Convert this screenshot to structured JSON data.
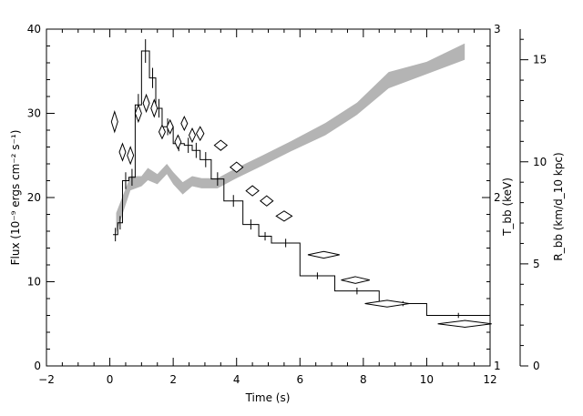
{
  "chart_data": {
    "type": "line",
    "title": "",
    "xlabel": "Time (s)",
    "ylabel": "Flux (10⁻⁹ ergs cm⁻² s⁻¹)",
    "y2label": "T_bb (keV)",
    "y3label": "R_bb (km/d_10 kpc)",
    "xlim": [
      -2,
      12
    ],
    "ylim": [
      0,
      40
    ],
    "y2lim": [
      1,
      3
    ],
    "y3lim": [
      0,
      16.5
    ],
    "x_ticks": [
      -2,
      0,
      2,
      4,
      6,
      8,
      10,
      12
    ],
    "y_ticks": [
      0,
      10,
      20,
      30,
      40
    ],
    "y2_ticks": [
      1,
      2,
      3
    ],
    "y3_ticks": [
      0,
      5,
      10,
      15
    ],
    "grid": false,
    "series": [
      {
        "name": "",
        "style": "step-with-error-bars",
        "color": "#000000",
        "points": [
          {
            "x0": 0.1,
            "x1": 0.25,
            "y": 15.6,
            "err": 0.8
          },
          {
            "x0": 0.25,
            "x1": 0.4,
            "y": 17.0,
            "err": 0.8
          },
          {
            "x0": 0.4,
            "x1": 0.6,
            "y": 22.0,
            "err": 1.0
          },
          {
            "x0": 0.6,
            "x1": 0.8,
            "y": 22.4,
            "err": 1.0
          },
          {
            "x0": 0.8,
            "x1": 1.0,
            "y": 31.0,
            "err": 1.3
          },
          {
            "x0": 1.0,
            "x1": 1.25,
            "y": 37.4,
            "err": 1.4
          },
          {
            "x0": 1.25,
            "x1": 1.45,
            "y": 34.2,
            "err": 1.2
          },
          {
            "x0": 1.45,
            "x1": 1.65,
            "y": 30.6,
            "err": 1.1
          },
          {
            "x0": 1.65,
            "x1": 2.0,
            "y": 28.4,
            "err": 1.0
          },
          {
            "x0": 2.0,
            "x1": 2.35,
            "y": 26.4,
            "err": 0.9
          },
          {
            "x0": 2.35,
            "x1": 2.6,
            "y": 26.2,
            "err": 0.9
          },
          {
            "x0": 2.6,
            "x1": 2.85,
            "y": 25.6,
            "err": 0.9
          },
          {
            "x0": 2.85,
            "x1": 3.2,
            "y": 24.5,
            "err": 0.9
          },
          {
            "x0": 3.2,
            "x1": 3.6,
            "y": 22.2,
            "err": 0.8
          },
          {
            "x0": 3.6,
            "x1": 4.2,
            "y": 19.6,
            "err": 0.7
          },
          {
            "x0": 4.2,
            "x1": 4.7,
            "y": 16.8,
            "err": 0.6
          },
          {
            "x0": 4.7,
            "x1": 5.1,
            "y": 15.4,
            "err": 0.5
          },
          {
            "x0": 5.1,
            "x1": 6.0,
            "y": 14.6,
            "err": 0.5
          },
          {
            "x0": 6.0,
            "x1": 7.1,
            "y": 10.7,
            "err": 0.4
          },
          {
            "x0": 7.1,
            "x1": 8.5,
            "y": 8.9,
            "err": 0.4
          },
          {
            "x0": 8.5,
            "x1": 10.0,
            "y": 7.4,
            "err": 0.3
          },
          {
            "x0": 10.0,
            "x1": 12.0,
            "y": 6.0,
            "err": 0.3
          }
        ]
      },
      {
        "name": "",
        "style": "diamonds",
        "axis": "y2",
        "color": "#000000",
        "points": [
          {
            "x": 0.15,
            "y": 2.45,
            "xerr": 0.1,
            "yerr": 0.06
          },
          {
            "x": 0.4,
            "y": 2.27,
            "xerr": 0.1,
            "yerr": 0.05
          },
          {
            "x": 0.65,
            "y": 2.25,
            "xerr": 0.1,
            "yerr": 0.05
          },
          {
            "x": 0.9,
            "y": 2.5,
            "xerr": 0.1,
            "yerr": 0.05
          },
          {
            "x": 1.15,
            "y": 2.56,
            "xerr": 0.1,
            "yerr": 0.05
          },
          {
            "x": 1.4,
            "y": 2.53,
            "xerr": 0.1,
            "yerr": 0.05
          },
          {
            "x": 1.65,
            "y": 2.39,
            "xerr": 0.1,
            "yerr": 0.04
          },
          {
            "x": 1.9,
            "y": 2.42,
            "xerr": 0.1,
            "yerr": 0.04
          },
          {
            "x": 2.15,
            "y": 2.33,
            "xerr": 0.1,
            "yerr": 0.04
          },
          {
            "x": 2.35,
            "y": 2.44,
            "xerr": 0.1,
            "yerr": 0.04
          },
          {
            "x": 2.6,
            "y": 2.37,
            "xerr": 0.1,
            "yerr": 0.04
          },
          {
            "x": 2.85,
            "y": 2.38,
            "xerr": 0.12,
            "yerr": 0.04
          },
          {
            "x": 3.5,
            "y": 2.31,
            "xerr": 0.2,
            "yerr": 0.03
          },
          {
            "x": 4.0,
            "y": 2.18,
            "xerr": 0.2,
            "yerr": 0.03
          },
          {
            "x": 4.5,
            "y": 2.04,
            "xerr": 0.2,
            "yerr": 0.03
          },
          {
            "x": 4.95,
            "y": 1.98,
            "xerr": 0.2,
            "yerr": 0.03
          },
          {
            "x": 5.5,
            "y": 1.89,
            "xerr": 0.25,
            "yerr": 0.03
          },
          {
            "x": 6.75,
            "y": 1.66,
            "xerr": 0.5,
            "yerr": 0.02
          },
          {
            "x": 7.75,
            "y": 1.51,
            "xerr": 0.45,
            "yerr": 0.02
          },
          {
            "x": 8.75,
            "y": 1.37,
            "xerr": 0.7,
            "yerr": 0.02
          },
          {
            "x": 11.2,
            "y": 1.25,
            "xerr": 0.85,
            "yerr": 0.02
          }
        ]
      },
      {
        "name": "",
        "style": "band",
        "axis": "y3",
        "color": "#b4b4b4",
        "points": [
          {
            "x": 0.2,
            "lo": 6.5,
            "hi": 7.5
          },
          {
            "x": 0.65,
            "lo": 8.6,
            "hi": 9.3
          },
          {
            "x": 1.0,
            "lo": 8.8,
            "hi": 9.3
          },
          {
            "x": 1.2,
            "lo": 9.1,
            "hi": 9.7
          },
          {
            "x": 1.5,
            "lo": 8.9,
            "hi": 9.4
          },
          {
            "x": 1.8,
            "lo": 9.4,
            "hi": 9.9
          },
          {
            "x": 2.0,
            "lo": 8.9,
            "hi": 9.5
          },
          {
            "x": 2.3,
            "lo": 8.4,
            "hi": 9.0
          },
          {
            "x": 2.6,
            "lo": 8.8,
            "hi": 9.3
          },
          {
            "x": 2.9,
            "lo": 8.7,
            "hi": 9.2
          },
          {
            "x": 3.4,
            "lo": 8.7,
            "hi": 9.2
          },
          {
            "x": 4.0,
            "lo": 9.2,
            "hi": 9.7
          },
          {
            "x": 4.8,
            "lo": 9.8,
            "hi": 10.3
          },
          {
            "x": 5.7,
            "lo": 10.5,
            "hi": 11.0
          },
          {
            "x": 6.8,
            "lo": 11.3,
            "hi": 11.9
          },
          {
            "x": 7.8,
            "lo": 12.3,
            "hi": 12.9
          },
          {
            "x": 8.8,
            "lo": 13.6,
            "hi": 14.4
          },
          {
            "x": 10.0,
            "lo": 14.3,
            "hi": 14.9
          },
          {
            "x": 11.2,
            "lo": 15.0,
            "hi": 15.8
          }
        ]
      }
    ]
  }
}
